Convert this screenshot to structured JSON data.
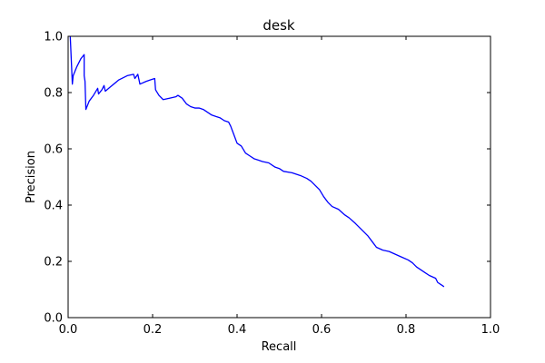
{
  "chart_data": {
    "type": "line",
    "title": "desk",
    "xlabel": "Recall",
    "ylabel": "Precision",
    "xlim": [
      0,
      1
    ],
    "ylim": [
      0,
      1
    ],
    "grid": false,
    "line_color": "#0000ff",
    "x_ticks": [
      {
        "value": 0,
        "label": "0.0"
      },
      {
        "value": 0.2,
        "label": "0.2"
      },
      {
        "value": 0.4,
        "label": "0.4"
      },
      {
        "value": 0.6,
        "label": "0.6"
      },
      {
        "value": 0.8,
        "label": "0.8"
      },
      {
        "value": 1.0,
        "label": "1.0"
      }
    ],
    "y_ticks": [
      {
        "value": 0,
        "label": "0.0"
      },
      {
        "value": 0.2,
        "label": "0.2"
      },
      {
        "value": 0.4,
        "label": "0.4"
      },
      {
        "value": 0.6,
        "label": "0.6"
      },
      {
        "value": 0.8,
        "label": "0.8"
      },
      {
        "value": 1.0,
        "label": "1.0"
      }
    ],
    "series": [
      {
        "points": [
          [
            0.005,
            1.0
          ],
          [
            0.01,
            0.83
          ],
          [
            0.012,
            0.86
          ],
          [
            0.02,
            0.89
          ],
          [
            0.03,
            0.92
          ],
          [
            0.038,
            0.935
          ],
          [
            0.038,
            0.86
          ],
          [
            0.04,
            0.84
          ],
          [
            0.042,
            0.74
          ],
          [
            0.05,
            0.77
          ],
          [
            0.06,
            0.79
          ],
          [
            0.07,
            0.815
          ],
          [
            0.072,
            0.795
          ],
          [
            0.08,
            0.81
          ],
          [
            0.085,
            0.825
          ],
          [
            0.088,
            0.805
          ],
          [
            0.1,
            0.82
          ],
          [
            0.12,
            0.845
          ],
          [
            0.14,
            0.86
          ],
          [
            0.155,
            0.865
          ],
          [
            0.158,
            0.85
          ],
          [
            0.165,
            0.865
          ],
          [
            0.17,
            0.83
          ],
          [
            0.185,
            0.84
          ],
          [
            0.195,
            0.845
          ],
          [
            0.205,
            0.85
          ],
          [
            0.207,
            0.81
          ],
          [
            0.215,
            0.79
          ],
          [
            0.225,
            0.775
          ],
          [
            0.24,
            0.78
          ],
          [
            0.255,
            0.785
          ],
          [
            0.26,
            0.79
          ],
          [
            0.27,
            0.78
          ],
          [
            0.28,
            0.76
          ],
          [
            0.29,
            0.75
          ],
          [
            0.3,
            0.745
          ],
          [
            0.31,
            0.745
          ],
          [
            0.32,
            0.74
          ],
          [
            0.33,
            0.73
          ],
          [
            0.34,
            0.72
          ],
          [
            0.35,
            0.715
          ],
          [
            0.36,
            0.71
          ],
          [
            0.37,
            0.7
          ],
          [
            0.38,
            0.695
          ],
          [
            0.385,
            0.68
          ],
          [
            0.39,
            0.66
          ],
          [
            0.395,
            0.64
          ],
          [
            0.4,
            0.62
          ],
          [
            0.41,
            0.61
          ],
          [
            0.42,
            0.585
          ],
          [
            0.43,
            0.575
          ],
          [
            0.44,
            0.565
          ],
          [
            0.45,
            0.56
          ],
          [
            0.46,
            0.555
          ],
          [
            0.475,
            0.55
          ],
          [
            0.49,
            0.535
          ],
          [
            0.5,
            0.53
          ],
          [
            0.51,
            0.52
          ],
          [
            0.53,
            0.515
          ],
          [
            0.55,
            0.505
          ],
          [
            0.565,
            0.495
          ],
          [
            0.575,
            0.485
          ],
          [
            0.585,
            0.47
          ],
          [
            0.595,
            0.455
          ],
          [
            0.605,
            0.43
          ],
          [
            0.615,
            0.41
          ],
          [
            0.625,
            0.395
          ],
          [
            0.64,
            0.385
          ],
          [
            0.655,
            0.365
          ],
          [
            0.665,
            0.355
          ],
          [
            0.68,
            0.335
          ],
          [
            0.69,
            0.32
          ],
          [
            0.7,
            0.305
          ],
          [
            0.71,
            0.29
          ],
          [
            0.72,
            0.27
          ],
          [
            0.73,
            0.25
          ],
          [
            0.745,
            0.24
          ],
          [
            0.76,
            0.235
          ],
          [
            0.775,
            0.225
          ],
          [
            0.79,
            0.215
          ],
          [
            0.805,
            0.205
          ],
          [
            0.815,
            0.195
          ],
          [
            0.825,
            0.18
          ],
          [
            0.835,
            0.17
          ],
          [
            0.845,
            0.16
          ],
          [
            0.855,
            0.15
          ],
          [
            0.87,
            0.14
          ],
          [
            0.875,
            0.125
          ],
          [
            0.885,
            0.115
          ],
          [
            0.89,
            0.11
          ]
        ]
      }
    ]
  }
}
